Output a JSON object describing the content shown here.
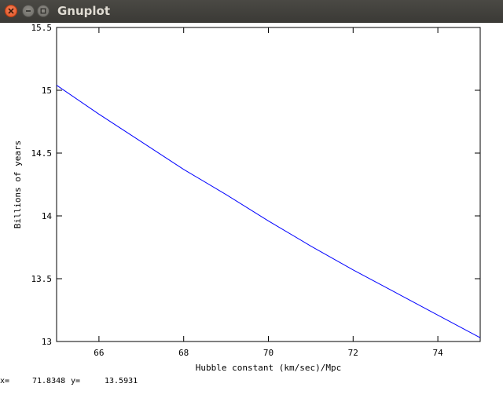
{
  "window": {
    "title": "Gnuplot"
  },
  "chart_data": {
    "type": "line",
    "xlabel": "Hubble constant (km/sec)/Mpc",
    "ylabel": "Billions of years",
    "xlim": [
      65,
      75
    ],
    "ylim": [
      13,
      15.5
    ],
    "x_ticks": [
      66,
      68,
      70,
      72,
      74
    ],
    "x_tick_labels": [
      "66",
      "68",
      "70",
      "72",
      "74"
    ],
    "y_ticks": [
      13,
      13.5,
      14,
      14.5,
      15,
      15.5
    ],
    "y_tick_labels": [
      "13",
      "13.5",
      "14",
      "14.5",
      "15",
      "15.5"
    ],
    "grid": false,
    "series": [
      {
        "color": "#0000ff",
        "x": [
          65,
          66,
          67,
          68,
          69,
          70,
          71,
          72,
          73,
          74,
          75
        ],
        "y": [
          15.04,
          14.81,
          14.59,
          14.37,
          14.17,
          13.96,
          13.76,
          13.57,
          13.39,
          13.21,
          13.03
        ]
      }
    ]
  },
  "statusbar": {
    "x_label": "x=",
    "x_value": "71.8348",
    "y_label": "y=",
    "y_value": "13.5931"
  }
}
